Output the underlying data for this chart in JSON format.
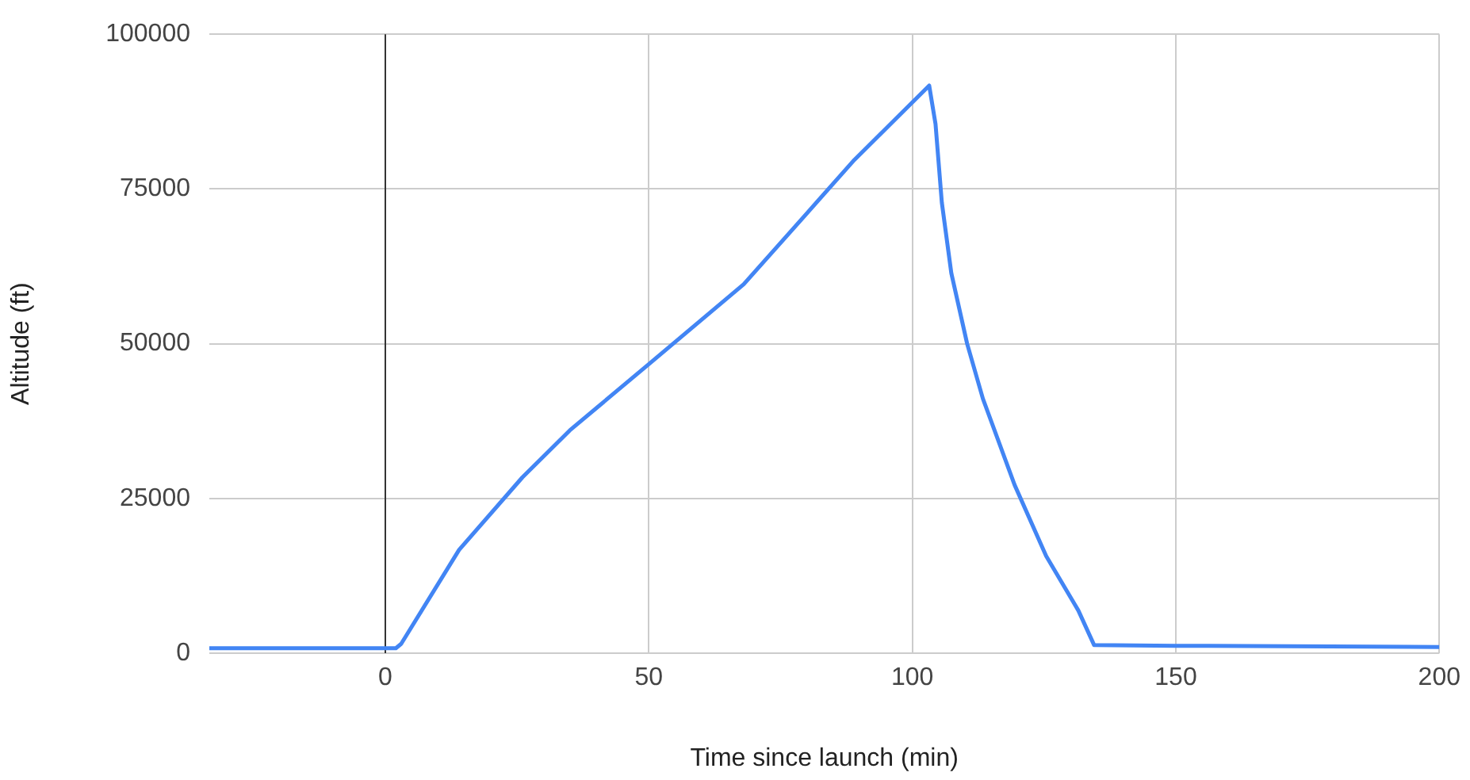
{
  "chart_data": {
    "type": "line",
    "xlabel": "Time since launch (min)",
    "ylabel": "Altitude (ft)",
    "x": [
      -33.4,
      0,
      2,
      3,
      14,
      26,
      35,
      50,
      68,
      89,
      103.2,
      104.4,
      105.6,
      107.4,
      110.4,
      113.4,
      119.4,
      125.4,
      131.5,
      134.5,
      150,
      200
    ],
    "series": [
      {
        "color": "#4285f4",
        "values": [
          800,
          800,
          800,
          1500,
          16700,
          28400,
          36000,
          46700,
          59600,
          79700,
          91700,
          85500,
          72800,
          61400,
          50000,
          41100,
          27200,
          15700,
          6900,
          1300,
          1200,
          1000
        ]
      }
    ],
    "xlim": [
      -33.4,
      200
    ],
    "xticks": [
      0,
      50,
      100,
      150,
      200
    ],
    "ylim": [
      0,
      100000
    ],
    "yticks": [
      0,
      25000,
      50000,
      75000,
      100000
    ],
    "grid": true,
    "legend": false,
    "marker": "none",
    "line_style": "solid",
    "ref_lines": [
      {
        "axis": "x",
        "value": 0,
        "color": "#333333"
      }
    ]
  }
}
